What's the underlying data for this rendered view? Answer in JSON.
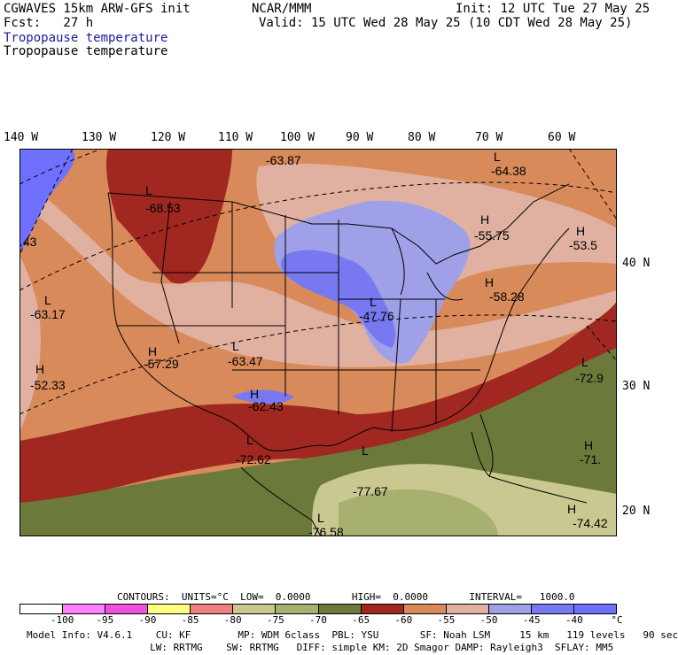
{
  "header": {
    "model": "CGWAVES 15km ARW-GFS init",
    "fcst": "Fcst:   27 h",
    "org": "NCAR/MMM",
    "init": "Init: 12 UTC Tue 27 May 25",
    "valid": "Valid: 15 UTC Wed 28 May 25 (10 CDT Wed 28 May 25)",
    "field_title_blue": "Tropopause temperature",
    "field_title": "Tropopause temperature"
  },
  "longitudes": [
    "140 W",
    "130 W",
    "120 W",
    "110 W",
    "100 W",
    "90 W",
    "80 W",
    "70 W",
    "60 W"
  ],
  "latitudes": [
    "40 N",
    "30 N",
    "20 N"
  ],
  "map_labels": [
    {
      "sym": "",
      "val": "-63.87"
    },
    {
      "sym": "L",
      "val": "-64.38"
    },
    {
      "sym": "L",
      "val": "-68.53"
    },
    {
      "sym": "",
      "val": ".43"
    },
    {
      "sym": "H",
      "val": "-55.75"
    },
    {
      "sym": "H",
      "val": "-53.5"
    },
    {
      "sym": "L",
      "val": "-63.17"
    },
    {
      "sym": "H",
      "val": "-58.28"
    },
    {
      "sym": "L",
      "val": "-47.76"
    },
    {
      "sym": "H",
      "val": "-57.29"
    },
    {
      "sym": "L",
      "val": "-63.47"
    },
    {
      "sym": "H",
      "val": "-52.33"
    },
    {
      "sym": "L",
      "val": "-72.9"
    },
    {
      "sym": "H",
      "val": "-62.43"
    },
    {
      "sym": "L",
      "val": "-72.62"
    },
    {
      "sym": "H",
      "val": "-71."
    },
    {
      "sym": "L",
      "val": "-77.67"
    },
    {
      "sym": "H",
      "val": "-74.42"
    },
    {
      "sym": "L",
      "val": "-76.58"
    }
  ],
  "legend": {
    "contours": "CONTOURS:  UNITS=°C  LOW=  0.0000       HIGH=  0.0000       INTERVAL=   1000.0",
    "colors": [
      "#ffffff",
      "#ff80ff",
      "#f050e0",
      "#ffff80",
      "#f08080",
      "#c8c890",
      "#a8b070",
      "#6b7a3a",
      "#a02820",
      "#d88a5a",
      "#e0b0a0",
      "#a0a0e8",
      "#7878f0",
      "#7070ff"
    ],
    "ticks": [
      "-100",
      "-95",
      "-90",
      "-85",
      "-80",
      "-75",
      "-70",
      "-65",
      "-60",
      "-55",
      "-50",
      "-45",
      "-40",
      "°C"
    ]
  },
  "footer": {
    "line1": "Model Info: V4.6.1    CU: KF        MP: WDM 6class  PBL: YSU       SF: Noah LSM     15 km   119 levels   90 sec",
    "line2": "                     LW: RRTMG    SW: RRTMG   DIFF: simple KM: 2D Smagor DAMP: Rayleigh3  SFLAY: MM5"
  }
}
